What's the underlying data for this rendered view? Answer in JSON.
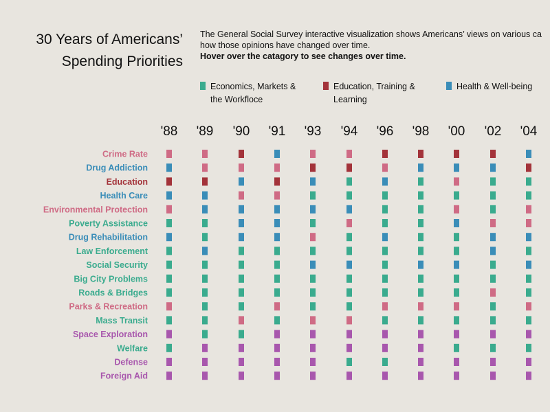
{
  "title_lines": [
    "30 Years of Americans’",
    "Spending Priorities"
  ],
  "description": {
    "line1": "The General Social Survey interactive visualization shows Americans’ views on various ca",
    "line2": "how those opinions have changed over time.",
    "line3": "Hover over the catagory to see changes over time."
  },
  "colors": {
    "economics": "#3aab8e",
    "education": "#a3333a",
    "health": "#3a8db8",
    "pink": "#cf6b85",
    "purple": "#a857ad"
  },
  "legend": [
    {
      "key": "economics",
      "lines": [
        "Economics, Markets &",
        "the Workfloce"
      ]
    },
    {
      "key": "education",
      "lines": [
        "Education, Training &",
        "Learning"
      ]
    },
    {
      "key": "health",
      "lines": [
        "Health & Well-being"
      ]
    }
  ],
  "chart_data": {
    "type": "heatmap",
    "x": [
      "'88",
      "'89",
      "'90",
      "'91",
      "'93",
      "'94",
      "'96",
      "'98",
      "'00",
      "'02",
      "'04"
    ],
    "categories": [
      {
        "name": "Crime Rate",
        "color": "pink",
        "cells": [
          "pink",
          "pink",
          "education",
          "health",
          "pink",
          "pink",
          "education",
          "education",
          "education",
          "education",
          "health"
        ]
      },
      {
        "name": "Drug Addiction",
        "color": "health",
        "cells": [
          "health",
          "pink",
          "pink",
          "pink",
          "education",
          "education",
          "pink",
          "health",
          "health",
          "health",
          "education"
        ]
      },
      {
        "name": "Education",
        "color": "education",
        "cells": [
          "education",
          "education",
          "health",
          "education",
          "health",
          "economics",
          "health",
          "economics",
          "pink",
          "economics",
          "economics"
        ]
      },
      {
        "name": "Health Care",
        "color": "health",
        "cells": [
          "health",
          "health",
          "pink",
          "pink",
          "economics",
          "economics",
          "economics",
          "economics",
          "economics",
          "economics",
          "economics"
        ]
      },
      {
        "name": "Environmental Protection",
        "color": "pink",
        "cells": [
          "pink",
          "health",
          "health",
          "health",
          "health",
          "health",
          "economics",
          "economics",
          "pink",
          "economics",
          "pink"
        ]
      },
      {
        "name": "Poverty Assistance",
        "color": "economics",
        "cells": [
          "economics",
          "economics",
          "health",
          "health",
          "economics",
          "pink",
          "economics",
          "economics",
          "health",
          "pink",
          "pink"
        ]
      },
      {
        "name": "Drug Rehabilitation",
        "color": "health",
        "cells": [
          "health",
          "economics",
          "health",
          "health",
          "pink",
          "economics",
          "health",
          "economics",
          "economics",
          "health",
          "health"
        ]
      },
      {
        "name": "Law Enforcement",
        "color": "economics",
        "cells": [
          "economics",
          "health",
          "economics",
          "economics",
          "economics",
          "economics",
          "economics",
          "economics",
          "economics",
          "health",
          "economics"
        ]
      },
      {
        "name": "Social Security",
        "color": "economics",
        "cells": [
          "economics",
          "economics",
          "economics",
          "economics",
          "health",
          "health",
          "economics",
          "health",
          "health",
          "economics",
          "health"
        ]
      },
      {
        "name": "Big City Problems",
        "color": "economics",
        "cells": [
          "economics",
          "economics",
          "economics",
          "economics",
          "economics",
          "economics",
          "economics",
          "economics",
          "economics",
          "economics",
          "economics"
        ]
      },
      {
        "name": "Roads & Bridges",
        "color": "economics",
        "cells": [
          "economics",
          "economics",
          "economics",
          "economics",
          "economics",
          "economics",
          "economics",
          "economics",
          "economics",
          "pink",
          "economics"
        ]
      },
      {
        "name": "Parks & Recreation",
        "color": "pink",
        "cells": [
          "pink",
          "economics",
          "economics",
          "pink",
          "economics",
          "economics",
          "pink",
          "pink",
          "pink",
          "economics",
          "pink"
        ]
      },
      {
        "name": "Mass Transit",
        "color": "economics",
        "cells": [
          "economics",
          "economics",
          "pink",
          "economics",
          "pink",
          "pink",
          "economics",
          "economics",
          "economics",
          "economics",
          "economics"
        ]
      },
      {
        "name": "Space Exploration",
        "color": "purple",
        "cells": [
          "purple",
          "economics",
          "economics",
          "purple",
          "purple",
          "purple",
          "purple",
          "purple",
          "purple",
          "purple",
          "purple"
        ]
      },
      {
        "name": "Welfare",
        "color": "economics",
        "cells": [
          "economics",
          "purple",
          "purple",
          "purple",
          "purple",
          "purple",
          "purple",
          "purple",
          "economics",
          "economics",
          "economics"
        ]
      },
      {
        "name": "Defense",
        "color": "purple",
        "cells": [
          "purple",
          "purple",
          "purple",
          "purple",
          "purple",
          "economics",
          "economics",
          "purple",
          "purple",
          "purple",
          "purple"
        ]
      },
      {
        "name": "Foreign Aid",
        "color": "purple",
        "cells": [
          "purple",
          "purple",
          "purple",
          "purple",
          "purple",
          "purple",
          "purple",
          "purple",
          "purple",
          "purple",
          "purple"
        ]
      }
    ]
  }
}
